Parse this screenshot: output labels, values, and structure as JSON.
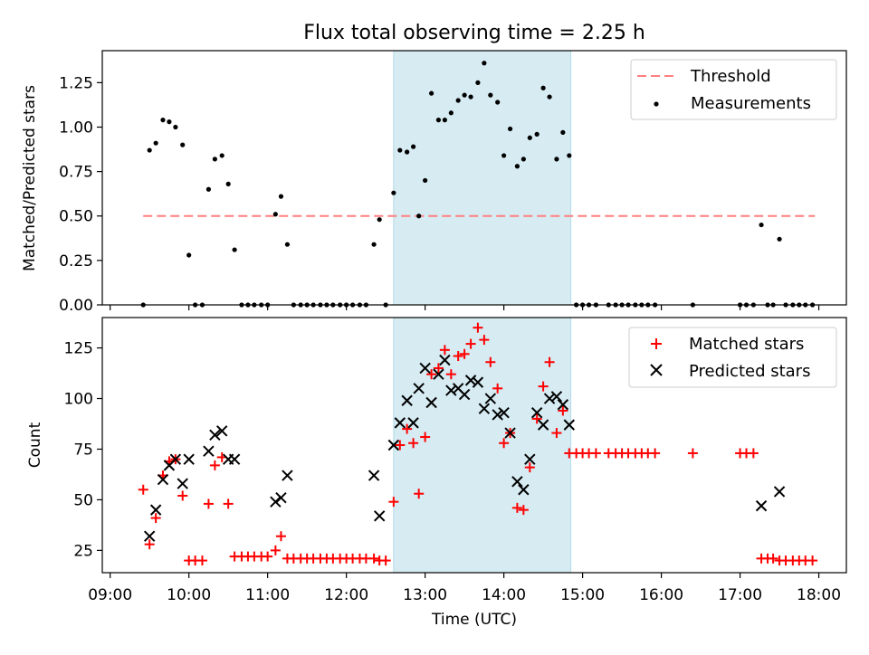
{
  "title": "Flux total observing time = 2.25 h",
  "colors": {
    "threshold": "#ff7f7f",
    "matched": "#ff0000",
    "predicted": "#000000",
    "measurement": "#000000",
    "shade": "#add8e6"
  },
  "chart_data": [
    {
      "type": "scatter",
      "ylabel": "Matched/Predicted stars",
      "xlim": [
        8.9,
        18.35
      ],
      "ylim": [
        0.0,
        1.43
      ],
      "yticks": [
        0.0,
        0.25,
        0.5,
        0.75,
        1.0,
        1.25
      ],
      "ytick_labels": [
        "0.00",
        "0.25",
        "0.50",
        "0.75",
        "1.00",
        "1.25"
      ],
      "shaded_span": [
        12.6,
        14.85
      ],
      "threshold": {
        "name": "Threshold",
        "y": 0.5,
        "x_range": [
          9.42,
          17.95
        ]
      },
      "legend": [
        "Threshold",
        "Measurements"
      ],
      "series": [
        {
          "name": "Measurements",
          "x": [
            9.42,
            9.5,
            9.58,
            9.67,
            9.75,
            9.83,
            9.92,
            10.0,
            10.08,
            10.17,
            10.25,
            10.33,
            10.42,
            10.5,
            10.58,
            10.67,
            10.75,
            10.83,
            10.92,
            11.0,
            11.1,
            11.17,
            11.25,
            11.33,
            11.42,
            11.5,
            11.58,
            11.67,
            11.75,
            11.83,
            11.92,
            12.0,
            12.08,
            12.17,
            12.25,
            12.35,
            12.42,
            12.5,
            12.6,
            12.68,
            12.77,
            12.85,
            12.92,
            13.0,
            13.08,
            13.17,
            13.25,
            13.33,
            13.42,
            13.5,
            13.58,
            13.67,
            13.75,
            13.83,
            13.92,
            14.0,
            14.08,
            14.17,
            14.25,
            14.33,
            14.42,
            14.5,
            14.58,
            14.67,
            14.75,
            14.83,
            14.92,
            15.0,
            15.08,
            15.17,
            15.33,
            15.42,
            15.5,
            15.58,
            15.67,
            15.75,
            15.83,
            15.92,
            16.4,
            17.0,
            17.08,
            17.17,
            17.27,
            17.35,
            17.42,
            17.5,
            17.58,
            17.67,
            17.75,
            17.83,
            17.92
          ],
          "y": [
            0.0,
            0.87,
            0.91,
            1.04,
            1.03,
            1.0,
            0.9,
            0.28,
            0.0,
            0.0,
            0.65,
            0.82,
            0.84,
            0.68,
            0.31,
            0.0,
            0.0,
            0.0,
            0.0,
            0.0,
            0.51,
            0.61,
            0.34,
            0.0,
            0.0,
            0.0,
            0.0,
            0.0,
            0.0,
            0.0,
            0.0,
            0.0,
            0.0,
            0.0,
            0.0,
            0.34,
            0.48,
            0.0,
            0.63,
            0.87,
            0.86,
            0.89,
            0.5,
            0.7,
            1.19,
            1.04,
            1.04,
            1.08,
            1.15,
            1.18,
            1.17,
            1.25,
            1.36,
            1.18,
            1.14,
            0.84,
            0.99,
            0.78,
            0.82,
            0.94,
            0.96,
            1.22,
            1.17,
            0.82,
            0.97,
            0.84,
            0.0,
            0.0,
            0.0,
            0.0,
            0.0,
            0.0,
            0.0,
            0.0,
            0.0,
            0.0,
            0.0,
            0.0,
            0.0,
            0.0,
            0.0,
            0.0,
            0.45,
            0.0,
            0.0,
            0.37,
            0.0,
            0.0,
            0.0,
            0.0,
            0.0
          ]
        }
      ]
    },
    {
      "type": "scatter",
      "ylabel": "Count",
      "xlabel": "Time (UTC)",
      "xlim": [
        8.9,
        18.35
      ],
      "ylim": [
        14,
        140
      ],
      "yticks": [
        25,
        50,
        75,
        100,
        125
      ],
      "ytick_labels": [
        "25",
        "50",
        "75",
        "100",
        "125"
      ],
      "xticks": [
        9,
        10,
        11,
        12,
        13,
        14,
        15,
        16,
        17,
        18
      ],
      "xtick_labels": [
        "09:00",
        "10:00",
        "11:00",
        "12:00",
        "13:00",
        "14:00",
        "15:00",
        "16:00",
        "17:00",
        "18:00"
      ],
      "shaded_span": [
        12.6,
        14.85
      ],
      "legend": [
        "Matched stars",
        "Predicted stars"
      ],
      "series": [
        {
          "name": "Matched stars",
          "marker": "plus",
          "x": [
            9.42,
            9.5,
            9.58,
            9.67,
            9.75,
            9.83,
            9.92,
            10.0,
            10.08,
            10.17,
            10.25,
            10.33,
            10.42,
            10.5,
            10.58,
            10.67,
            10.75,
            10.83,
            10.92,
            11.0,
            11.1,
            11.17,
            11.25,
            11.33,
            11.42,
            11.5,
            11.58,
            11.67,
            11.75,
            11.83,
            11.92,
            12.0,
            12.08,
            12.17,
            12.25,
            12.35,
            12.42,
            12.5,
            12.6,
            12.68,
            12.77,
            12.85,
            12.92,
            13.0,
            13.08,
            13.17,
            13.25,
            13.33,
            13.42,
            13.5,
            13.58,
            13.67,
            13.75,
            13.83,
            13.92,
            14.0,
            14.08,
            14.17,
            14.25,
            14.33,
            14.42,
            14.5,
            14.58,
            14.67,
            14.75,
            14.83,
            14.92,
            15.0,
            15.08,
            15.17,
            15.33,
            15.42,
            15.5,
            15.58,
            15.67,
            15.75,
            15.83,
            15.92,
            16.4,
            17.0,
            17.08,
            17.17,
            17.27,
            17.35,
            17.42,
            17.5,
            17.58,
            17.67,
            17.75,
            17.83,
            17.92
          ],
          "y": [
            55,
            28,
            41,
            62,
            69,
            70,
            52,
            20,
            20,
            20,
            48,
            67,
            71,
            48,
            22,
            22,
            22,
            22,
            22,
            22,
            25,
            32,
            21,
            21,
            21,
            21,
            21,
            21,
            21,
            21,
            21,
            21,
            21,
            21,
            21,
            21,
            20,
            20,
            49,
            77,
            85,
            78,
            53,
            81,
            112,
            115,
            124,
            112,
            121,
            122,
            127,
            135,
            129,
            118,
            105,
            78,
            83,
            46,
            45,
            66,
            90,
            106,
            118,
            83,
            94,
            73,
            73,
            73,
            73,
            73,
            73,
            73,
            73,
            73,
            73,
            73,
            73,
            73,
            73,
            73,
            73,
            73,
            21,
            21,
            21,
            20,
            20,
            20,
            20,
            20,
            20
          ]
        },
        {
          "name": "Predicted stars",
          "marker": "x",
          "x": [
            9.5,
            9.58,
            9.67,
            9.75,
            9.83,
            9.92,
            10.0,
            10.25,
            10.33,
            10.42,
            10.5,
            10.58,
            11.1,
            11.17,
            11.25,
            12.35,
            12.42,
            12.6,
            12.68,
            12.77,
            12.85,
            12.92,
            13.0,
            13.08,
            13.17,
            13.25,
            13.33,
            13.42,
            13.5,
            13.58,
            13.67,
            13.75,
            13.83,
            13.92,
            14.0,
            14.08,
            14.17,
            14.25,
            14.33,
            14.42,
            14.5,
            14.58,
            14.67,
            14.75,
            14.83,
            17.27,
            17.5
          ],
          "y": [
            32,
            45,
            60,
            67,
            70,
            58,
            70,
            74,
            82,
            84,
            70,
            70,
            49,
            51,
            62,
            62,
            42,
            77,
            88,
            99,
            88,
            105,
            115,
            98,
            112,
            119,
            104,
            105,
            102,
            109,
            108,
            95,
            100,
            92,
            93,
            83,
            59,
            55,
            70,
            93,
            87,
            100,
            101,
            97,
            87,
            47,
            54
          ]
        }
      ]
    }
  ]
}
